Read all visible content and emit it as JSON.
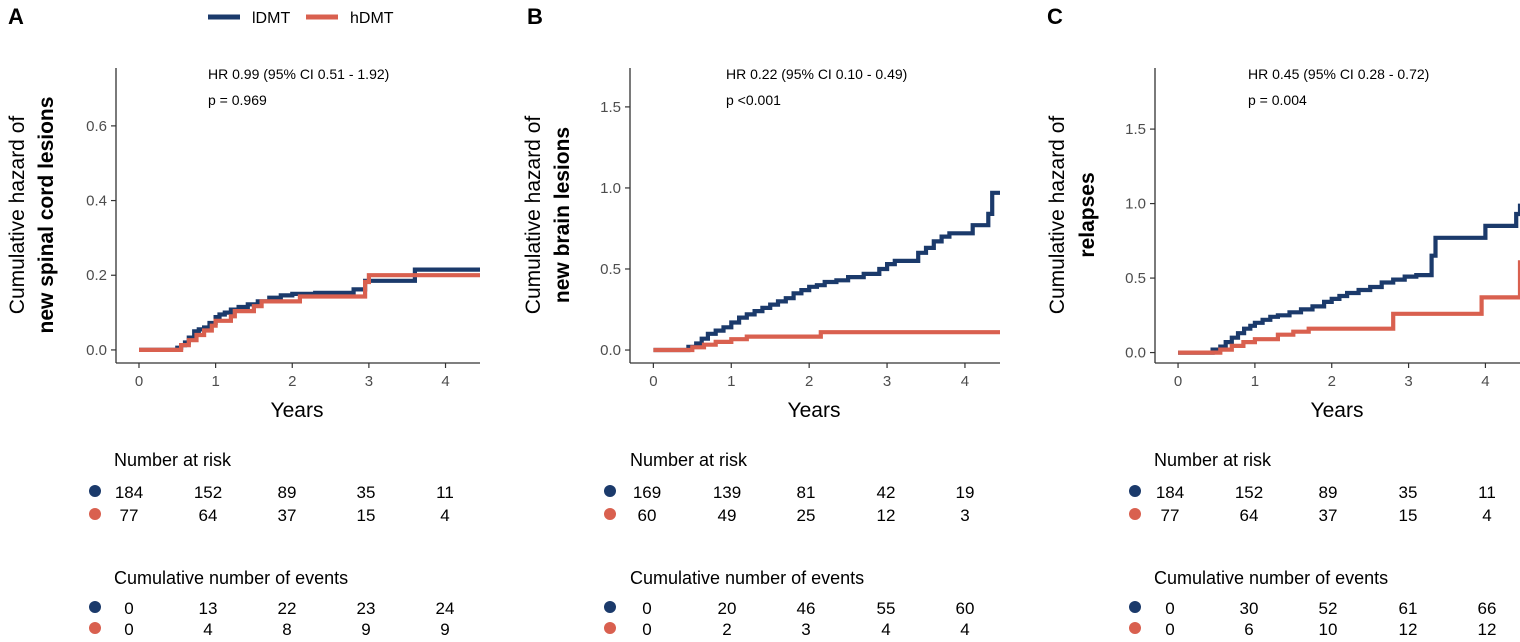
{
  "legend": {
    "items": [
      {
        "label": "lDMT",
        "color": "#1b3a6b"
      },
      {
        "label": "hDMT",
        "color": "#d9604f"
      }
    ]
  },
  "risk_table_title": "Number at risk",
  "events_table_title": "Cumulative number of events",
  "chart_data": [
    {
      "type": "line",
      "panel": "A",
      "ylabel": [
        "Cumulative hazard of",
        "new spinal cord lesions"
      ],
      "xlabel": "Years",
      "xlim": [
        -0.3,
        4.45
      ],
      "ylim": [
        -0.035,
        0.755
      ],
      "xticks": [
        0,
        1,
        2,
        3,
        4
      ],
      "yticks": [
        0.0,
        0.2,
        0.4,
        0.6
      ],
      "ytick_labels": [
        "0.0",
        "0.2",
        "0.4",
        "0.6"
      ],
      "annotation": [
        "HR 0.99 (95% CI 0.51 - 1.92)",
        "p = 0.969"
      ],
      "series": [
        {
          "name": "lDMT",
          "color": "#1b3a6b",
          "x": [
            0,
            0.5,
            0.55,
            0.6,
            0.65,
            0.72,
            0.78,
            0.85,
            0.92,
            1.0,
            1.05,
            1.12,
            1.2,
            1.3,
            1.42,
            1.55,
            1.7,
            1.85,
            2.0,
            2.3,
            2.8,
            2.95,
            3.6,
            4.45
          ],
          "y": [
            0,
            0.006,
            0.013,
            0.02,
            0.033,
            0.05,
            0.055,
            0.06,
            0.072,
            0.088,
            0.095,
            0.1,
            0.108,
            0.115,
            0.122,
            0.13,
            0.14,
            0.146,
            0.15,
            0.153,
            0.162,
            0.185,
            0.215,
            0.215
          ]
        },
        {
          "name": "hDMT",
          "color": "#d9604f",
          "x": [
            0,
            0.55,
            0.65,
            0.75,
            0.85,
            0.95,
            1.0,
            1.2,
            1.25,
            1.5,
            1.6,
            2.1,
            2.95,
            3.0,
            4.45
          ],
          "y": [
            0,
            0.013,
            0.026,
            0.04,
            0.052,
            0.065,
            0.078,
            0.09,
            0.104,
            0.117,
            0.13,
            0.143,
            0.182,
            0.2,
            0.2
          ]
        }
      ],
      "risk": {
        "lDMT": [
          "184",
          "152",
          "89",
          "35",
          "11"
        ],
        "hDMT": [
          "77",
          "64",
          "37",
          "15",
          "4"
        ]
      },
      "events": {
        "lDMT": [
          "0",
          "13",
          "22",
          "23",
          "24"
        ],
        "hDMT": [
          "0",
          "4",
          "8",
          "9",
          "9"
        ]
      }
    },
    {
      "type": "line",
      "panel": "B",
      "ylabel": [
        "Cumulative hazard of",
        "new brain lesions"
      ],
      "xlabel": "Years",
      "xlim": [
        -0.3,
        4.45
      ],
      "ylim": [
        -0.08,
        1.74
      ],
      "xticks": [
        0,
        1,
        2,
        3,
        4
      ],
      "yticks": [
        0.0,
        0.5,
        1.0,
        1.5
      ],
      "ytick_labels": [
        "0.0",
        "0.5",
        "1.0",
        "1.5"
      ],
      "annotation": [
        "HR 0.22 (95% CI 0.10 - 0.49)",
        "p <0.001"
      ],
      "series": [
        {
          "name": "lDMT",
          "color": "#1b3a6b",
          "x": [
            0,
            0.45,
            0.55,
            0.62,
            0.7,
            0.8,
            0.9,
            1.0,
            1.1,
            1.2,
            1.3,
            1.4,
            1.5,
            1.6,
            1.7,
            1.8,
            1.9,
            2.0,
            2.1,
            2.2,
            2.35,
            2.5,
            2.7,
            2.9,
            3.0,
            3.1,
            3.4,
            3.5,
            3.6,
            3.7,
            3.8,
            4.1,
            4.3,
            4.35,
            4.45
          ],
          "y": [
            0,
            0.02,
            0.04,
            0.07,
            0.1,
            0.12,
            0.14,
            0.17,
            0.2,
            0.22,
            0.24,
            0.26,
            0.28,
            0.3,
            0.32,
            0.35,
            0.37,
            0.39,
            0.4,
            0.42,
            0.43,
            0.45,
            0.47,
            0.5,
            0.53,
            0.55,
            0.6,
            0.63,
            0.67,
            0.7,
            0.72,
            0.77,
            0.84,
            0.97,
            0.97
          ]
        },
        {
          "name": "hDMT",
          "color": "#d9604f",
          "x": [
            0,
            0.5,
            0.65,
            0.8,
            1.0,
            1.2,
            2.15,
            4.45
          ],
          "y": [
            0,
            0.017,
            0.033,
            0.05,
            0.067,
            0.083,
            0.11,
            0.11
          ]
        }
      ],
      "risk": {
        "lDMT": [
          "169",
          "139",
          "81",
          "42",
          "19"
        ],
        "hDMT": [
          "60",
          "49",
          "25",
          "12",
          "3"
        ]
      },
      "events": {
        "lDMT": [
          "0",
          "20",
          "46",
          "55",
          "60"
        ],
        "hDMT": [
          "0",
          "2",
          "3",
          "4",
          "4"
        ]
      }
    },
    {
      "type": "line",
      "panel": "C",
      "ylabel": [
        "Cumulative hazard of",
        "relapses"
      ],
      "xlabel": "Years",
      "xlim": [
        -0.3,
        4.45
      ],
      "ylim": [
        -0.07,
        1.91
      ],
      "xticks": [
        0,
        1,
        2,
        3,
        4
      ],
      "yticks": [
        0.0,
        0.5,
        1.0,
        1.5
      ],
      "ytick_labels": [
        "0.0",
        "0.5",
        "1.0",
        "1.5"
      ],
      "annotation": [
        "HR 0.45 (95% CI 0.28 - 0.72)",
        "p = 0.004"
      ],
      "series": [
        {
          "name": "lDMT",
          "color": "#1b3a6b",
          "x": [
            0,
            0.45,
            0.55,
            0.62,
            0.7,
            0.78,
            0.86,
            0.94,
            1.0,
            1.1,
            1.2,
            1.3,
            1.45,
            1.6,
            1.75,
            1.9,
            2.0,
            2.1,
            2.2,
            2.35,
            2.5,
            2.65,
            2.8,
            2.95,
            3.1,
            3.3,
            3.35,
            4.0,
            4.4,
            4.45
          ],
          "y": [
            0,
            0.02,
            0.04,
            0.07,
            0.1,
            0.13,
            0.16,
            0.18,
            0.2,
            0.22,
            0.24,
            0.25,
            0.27,
            0.29,
            0.31,
            0.34,
            0.36,
            0.38,
            0.4,
            0.42,
            0.44,
            0.47,
            0.49,
            0.51,
            0.52,
            0.65,
            0.77,
            0.85,
            0.93,
            1.0
          ]
        },
        {
          "name": "hDMT",
          "color": "#d9604f",
          "x": [
            0,
            0.55,
            0.7,
            0.85,
            1.0,
            1.3,
            1.5,
            1.7,
            2.8,
            3.95,
            4.45
          ],
          "y": [
            0,
            0.02,
            0.045,
            0.07,
            0.09,
            0.12,
            0.14,
            0.16,
            0.26,
            0.37,
            0.62
          ]
        }
      ],
      "risk": {
        "lDMT": [
          "184",
          "152",
          "89",
          "35",
          "11"
        ],
        "hDMT": [
          "77",
          "64",
          "37",
          "15",
          "4"
        ]
      },
      "events": {
        "lDMT": [
          "0",
          "30",
          "52",
          "61",
          "66"
        ],
        "hDMT": [
          "0",
          "6",
          "10",
          "12",
          "12"
        ]
      }
    }
  ]
}
